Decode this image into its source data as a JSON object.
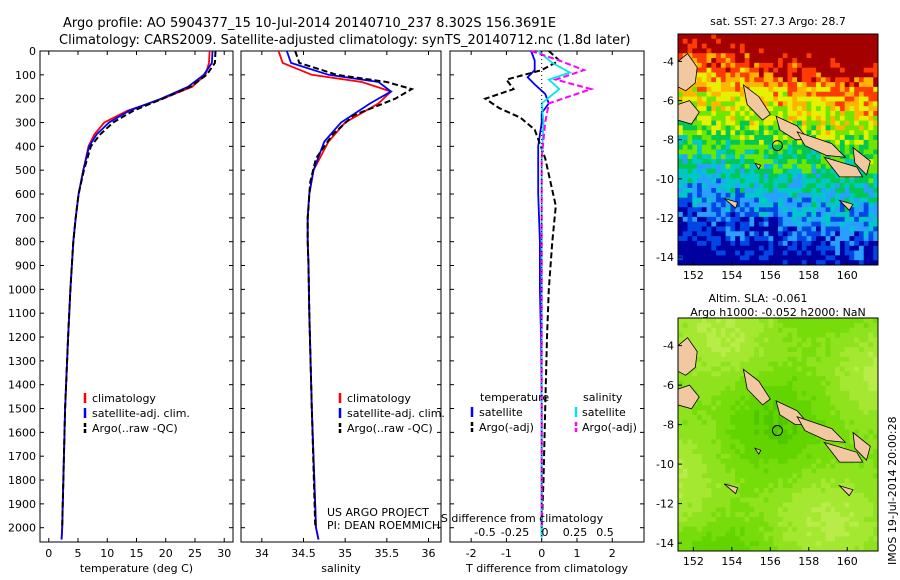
{
  "header": {
    "line1": "Argo profile: AO 5904377_15 10-Jul-2014 20140710_237 8.302S 156.3691E",
    "line2": "Climatology: CARS2009. Satellite-adjusted climatology: synTS_20140712.nc (1.8d later)"
  },
  "side_stamp": "IMOS 19-Jul-2014 20:00:28",
  "chart_data": [
    {
      "type": "line",
      "name": "temperature",
      "xlabel": "temperature (deg C)",
      "xlim": [
        -1.5,
        31.5
      ],
      "ylim": [
        0,
        2060
      ],
      "xticks": [
        0,
        5,
        10,
        15,
        20,
        25,
        30
      ],
      "yticks": [
        0,
        100,
        200,
        300,
        400,
        500,
        600,
        700,
        800,
        900,
        1000,
        1100,
        1200,
        1300,
        1400,
        1500,
        1600,
        1700,
        1800,
        1900,
        2000
      ],
      "legend": [
        "climatology",
        "satellite-adj. clim.",
        "Argo(..raw -QC)"
      ],
      "colors": {
        "climatology": "#ff0000",
        "satellite": "#0000ff",
        "argo": "#000000"
      },
      "series": [
        {
          "key": "climatology",
          "x": [
            27.5,
            27.4,
            26.8,
            24.5,
            19.5,
            13.5,
            9.5,
            7.8,
            6.8,
            5.9,
            5.1,
            4.6,
            4.2,
            3.7,
            3.3,
            2.8,
            2.3,
            2.2
          ],
          "y": [
            0,
            50,
            100,
            150,
            200,
            250,
            300,
            350,
            400,
            500,
            600,
            700,
            800,
            1000,
            1200,
            1500,
            2000,
            2050
          ]
        },
        {
          "key": "satellite",
          "x": [
            28.0,
            27.9,
            26.5,
            23.8,
            19.2,
            13.8,
            10.3,
            8.2,
            6.9,
            5.9,
            5.1,
            4.6,
            4.2,
            3.7,
            3.3,
            2.8,
            2.3,
            2.2
          ],
          "y": [
            0,
            50,
            100,
            150,
            200,
            250,
            300,
            350,
            400,
            500,
            600,
            700,
            800,
            1000,
            1200,
            1500,
            2000,
            2050
          ]
        },
        {
          "key": "argo",
          "x": [
            28.5,
            28.4,
            27.0,
            24.2,
            19.5,
            14.5,
            11.0,
            8.8,
            7.2,
            6.0,
            5.1,
            4.6,
            4.2,
            3.7,
            3.3,
            2.8,
            2.3
          ],
          "y": [
            0,
            50,
            100,
            150,
            200,
            250,
            300,
            350,
            400,
            500,
            600,
            700,
            800,
            1000,
            1200,
            1500,
            1990
          ]
        }
      ]
    },
    {
      "type": "line",
      "name": "salinity",
      "xlabel": "salinity",
      "xlim": [
        33.75,
        36.15
      ],
      "ylim": [
        0,
        2060
      ],
      "xticks": [
        34,
        34.5,
        35,
        35.5,
        36
      ],
      "legend": [
        "climatology",
        "satellite-adj. clim.",
        "Argo(..raw -QC)"
      ],
      "annotation": [
        "US ARGO PROJECT",
        "PI: DEAN ROEMMICH"
      ],
      "series": [
        {
          "key": "climatology",
          "x": [
            34.2,
            34.25,
            34.6,
            35.2,
            35.55,
            35.4,
            35.0,
            34.8,
            34.62,
            34.57,
            34.55,
            34.55,
            34.56,
            34.57,
            34.6,
            34.65,
            34.68
          ],
          "y": [
            0,
            50,
            100,
            130,
            170,
            220,
            300,
            380,
            500,
            600,
            700,
            800,
            900,
            1100,
            1500,
            2000,
            2050
          ]
        },
        {
          "key": "satellite",
          "x": [
            34.3,
            34.35,
            34.8,
            35.4,
            35.55,
            35.3,
            34.95,
            34.75,
            34.62,
            34.57,
            34.55,
            34.55,
            34.56,
            34.57,
            34.6,
            34.65,
            34.68
          ],
          "y": [
            0,
            50,
            100,
            130,
            170,
            220,
            300,
            380,
            500,
            600,
            700,
            800,
            900,
            1100,
            1500,
            2000,
            2050
          ]
        },
        {
          "key": "argo",
          "x": [
            34.4,
            34.45,
            34.9,
            35.5,
            35.8,
            35.6,
            35.1,
            34.85,
            34.65,
            34.58,
            34.55,
            34.55,
            34.56,
            34.57,
            34.6,
            34.64
          ],
          "y": [
            0,
            50,
            100,
            130,
            160,
            200,
            270,
            350,
            450,
            550,
            700,
            800,
            900,
            1100,
            1500,
            1990
          ]
        }
      ]
    },
    {
      "type": "line",
      "name": "difference",
      "xlabel": "T difference from climatology",
      "x2label": "S difference from climatology",
      "xlim": [
        -2.6,
        2.9
      ],
      "ylim": [
        0,
        2060
      ],
      "xticks": [
        -2,
        -1,
        0,
        1,
        2
      ],
      "x2ticks": [
        "-0.5",
        "-0.25",
        "0",
        "0.25",
        "0.5"
      ],
      "legend_temperature": [
        "temperature",
        "satellite",
        "Argo(-adj)"
      ],
      "legend_salinity": [
        "salinity",
        "satellite",
        "Argo(-adj)"
      ],
      "colors": {
        "t_sat": "#0000ff",
        "t_argo": "#000000",
        "s_sat": "#00e5ee",
        "s_argo": "#ff00ff"
      },
      "series": [
        {
          "key": "t_sat",
          "x": [
            -0.3,
            -0.2,
            -0.2,
            -0.4,
            -0.2,
            0.1,
            0.2,
            0.0,
            0.0,
            -0.1,
            -0.1,
            -0.05,
            -0.05,
            -0.02,
            0.0,
            0.0,
            0.0
          ],
          "y": [
            0,
            40,
            80,
            110,
            140,
            180,
            220,
            260,
            300,
            400,
            600,
            800,
            1000,
            1200,
            1500,
            1800,
            2040
          ]
        },
        {
          "key": "t_argo",
          "x": [
            0.2,
            0.5,
            0.0,
            -1.0,
            -0.8,
            -1.6,
            -1.2,
            -0.6,
            -0.2,
            0.1,
            0.4,
            0.3,
            0.2,
            0.15,
            0.1,
            0.05,
            0.0
          ],
          "y": [
            0,
            40,
            80,
            120,
            160,
            200,
            240,
            280,
            330,
            450,
            650,
            800,
            1000,
            1200,
            1500,
            1800,
            2000
          ]
        },
        {
          "key": "s_sat",
          "x": [
            -0.1,
            0.3,
            0.8,
            0.2,
            0.5,
            0.0,
            0.05,
            0.0,
            0.0,
            0.0,
            0.0,
            0.0,
            0.0,
            0.0
          ],
          "y": [
            0,
            50,
            90,
            120,
            160,
            220,
            300,
            450,
            600,
            800,
            1000,
            1300,
            1600,
            2040
          ]
        },
        {
          "key": "s_argo",
          "x": [
            -0.3,
            0.5,
            1.2,
            0.4,
            1.4,
            0.2,
            0.1,
            0.0,
            0.0,
            0.0,
            0.0,
            0.0,
            0.0,
            0.0
          ],
          "y": [
            0,
            40,
            80,
            120,
            160,
            220,
            300,
            450,
            600,
            800,
            1000,
            1100,
            1300,
            1990
          ]
        }
      ]
    },
    {
      "type": "heatmap",
      "name": "sst-map",
      "title": "sat. SST: 27.3 Argo: 28.7",
      "xlim": [
        151.2,
        161.6
      ],
      "ylim": [
        -14.4,
        -2.6
      ],
      "xticks": [
        152,
        154,
        156,
        158,
        160
      ],
      "yticks": [
        -4,
        -6,
        -8,
        -10,
        -12,
        -14
      ],
      "palette": [
        "#a50000",
        "#ff3b00",
        "#ffb400",
        "#e6f000",
        "#6ee600",
        "#00c850",
        "#00c8c8",
        "#28a0ff",
        "#0046e6",
        "#0000a0"
      ],
      "argo_position": {
        "lon": 156.37,
        "lat": -8.3
      }
    },
    {
      "type": "heatmap",
      "name": "sla-map",
      "title_line1": "Altim. SLA: -0.061",
      "title_line2": "Argo h1000: -0.052 h2000: NaN",
      "xlim": [
        151.2,
        161.6
      ],
      "ylim": [
        -14.4,
        -2.6
      ],
      "xticks": [
        152,
        154,
        156,
        158,
        160
      ],
      "yticks": [
        -4,
        -6,
        -8,
        -10,
        -12,
        -14
      ],
      "palette": [
        "#4fc800",
        "#62d400",
        "#76dc0a",
        "#8ee21e",
        "#a4e832",
        "#b8ec48"
      ],
      "argo_position": {
        "lon": 156.37,
        "lat": -8.3
      }
    }
  ]
}
